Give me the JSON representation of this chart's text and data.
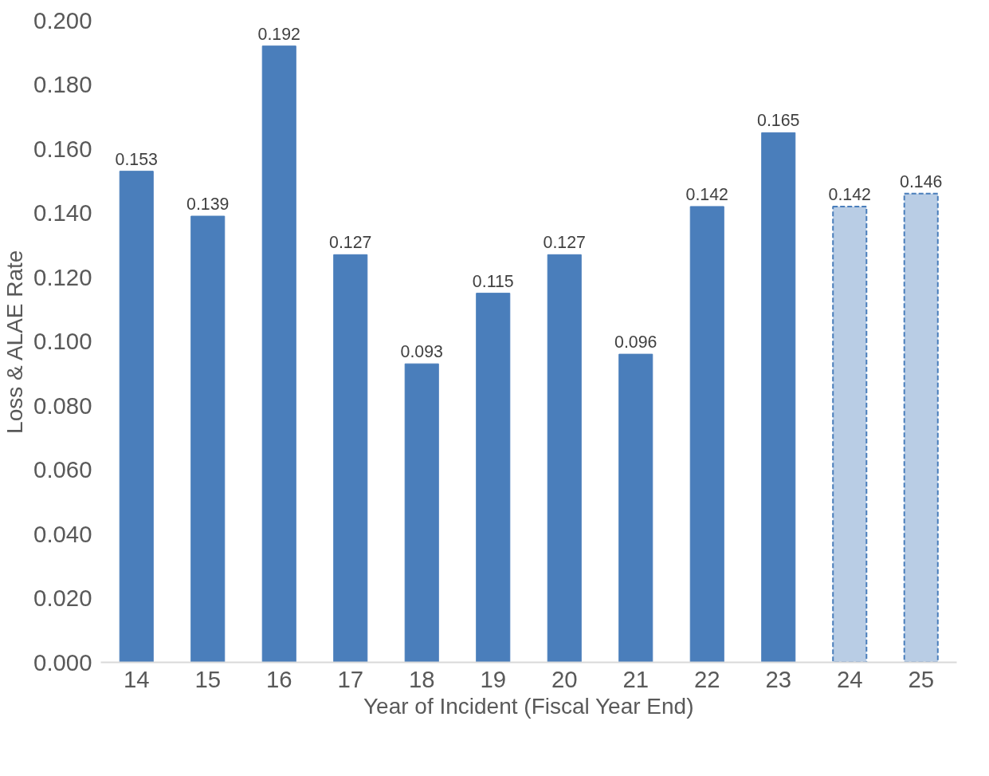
{
  "chart_data": {
    "type": "bar",
    "xlabel": "Year of Incident (Fiscal Year End)",
    "ylabel": "Loss & ALAE Rate",
    "categories": [
      "14",
      "15",
      "16",
      "17",
      "18",
      "19",
      "20",
      "21",
      "22",
      "23",
      "24",
      "25"
    ],
    "series": [
      {
        "color": "#4a7ebb",
        "line_style": "solid",
        "values": [
          0.153,
          0.139,
          0.192,
          0.127,
          0.093,
          0.115,
          0.127,
          0.096,
          0.142,
          0.165,
          null,
          null
        ]
      },
      {
        "color": "#b9cde5",
        "line_style": "dashed",
        "values": [
          null,
          null,
          null,
          null,
          null,
          null,
          null,
          null,
          null,
          null,
          0.142,
          0.146
        ]
      }
    ],
    "ylim": [
      0,
      0.2
    ],
    "yticks": [
      {
        "value": 0,
        "label": "0.000"
      },
      {
        "value": 0.02,
        "label": "0.020"
      },
      {
        "value": 0.04,
        "label": "0.040"
      },
      {
        "value": 0.06,
        "label": "0.060"
      },
      {
        "value": 0.08,
        "label": "0.080"
      },
      {
        "value": 0.1,
        "label": "0.100"
      },
      {
        "value": 0.12,
        "label": "0.120"
      },
      {
        "value": 0.14,
        "label": "0.140"
      },
      {
        "value": 0.16,
        "label": "0.160"
      },
      {
        "value": 0.18,
        "label": "0.180"
      },
      {
        "value": 0.2,
        "label": "0.200"
      }
    ],
    "data_labels": true,
    "grid": false
  }
}
